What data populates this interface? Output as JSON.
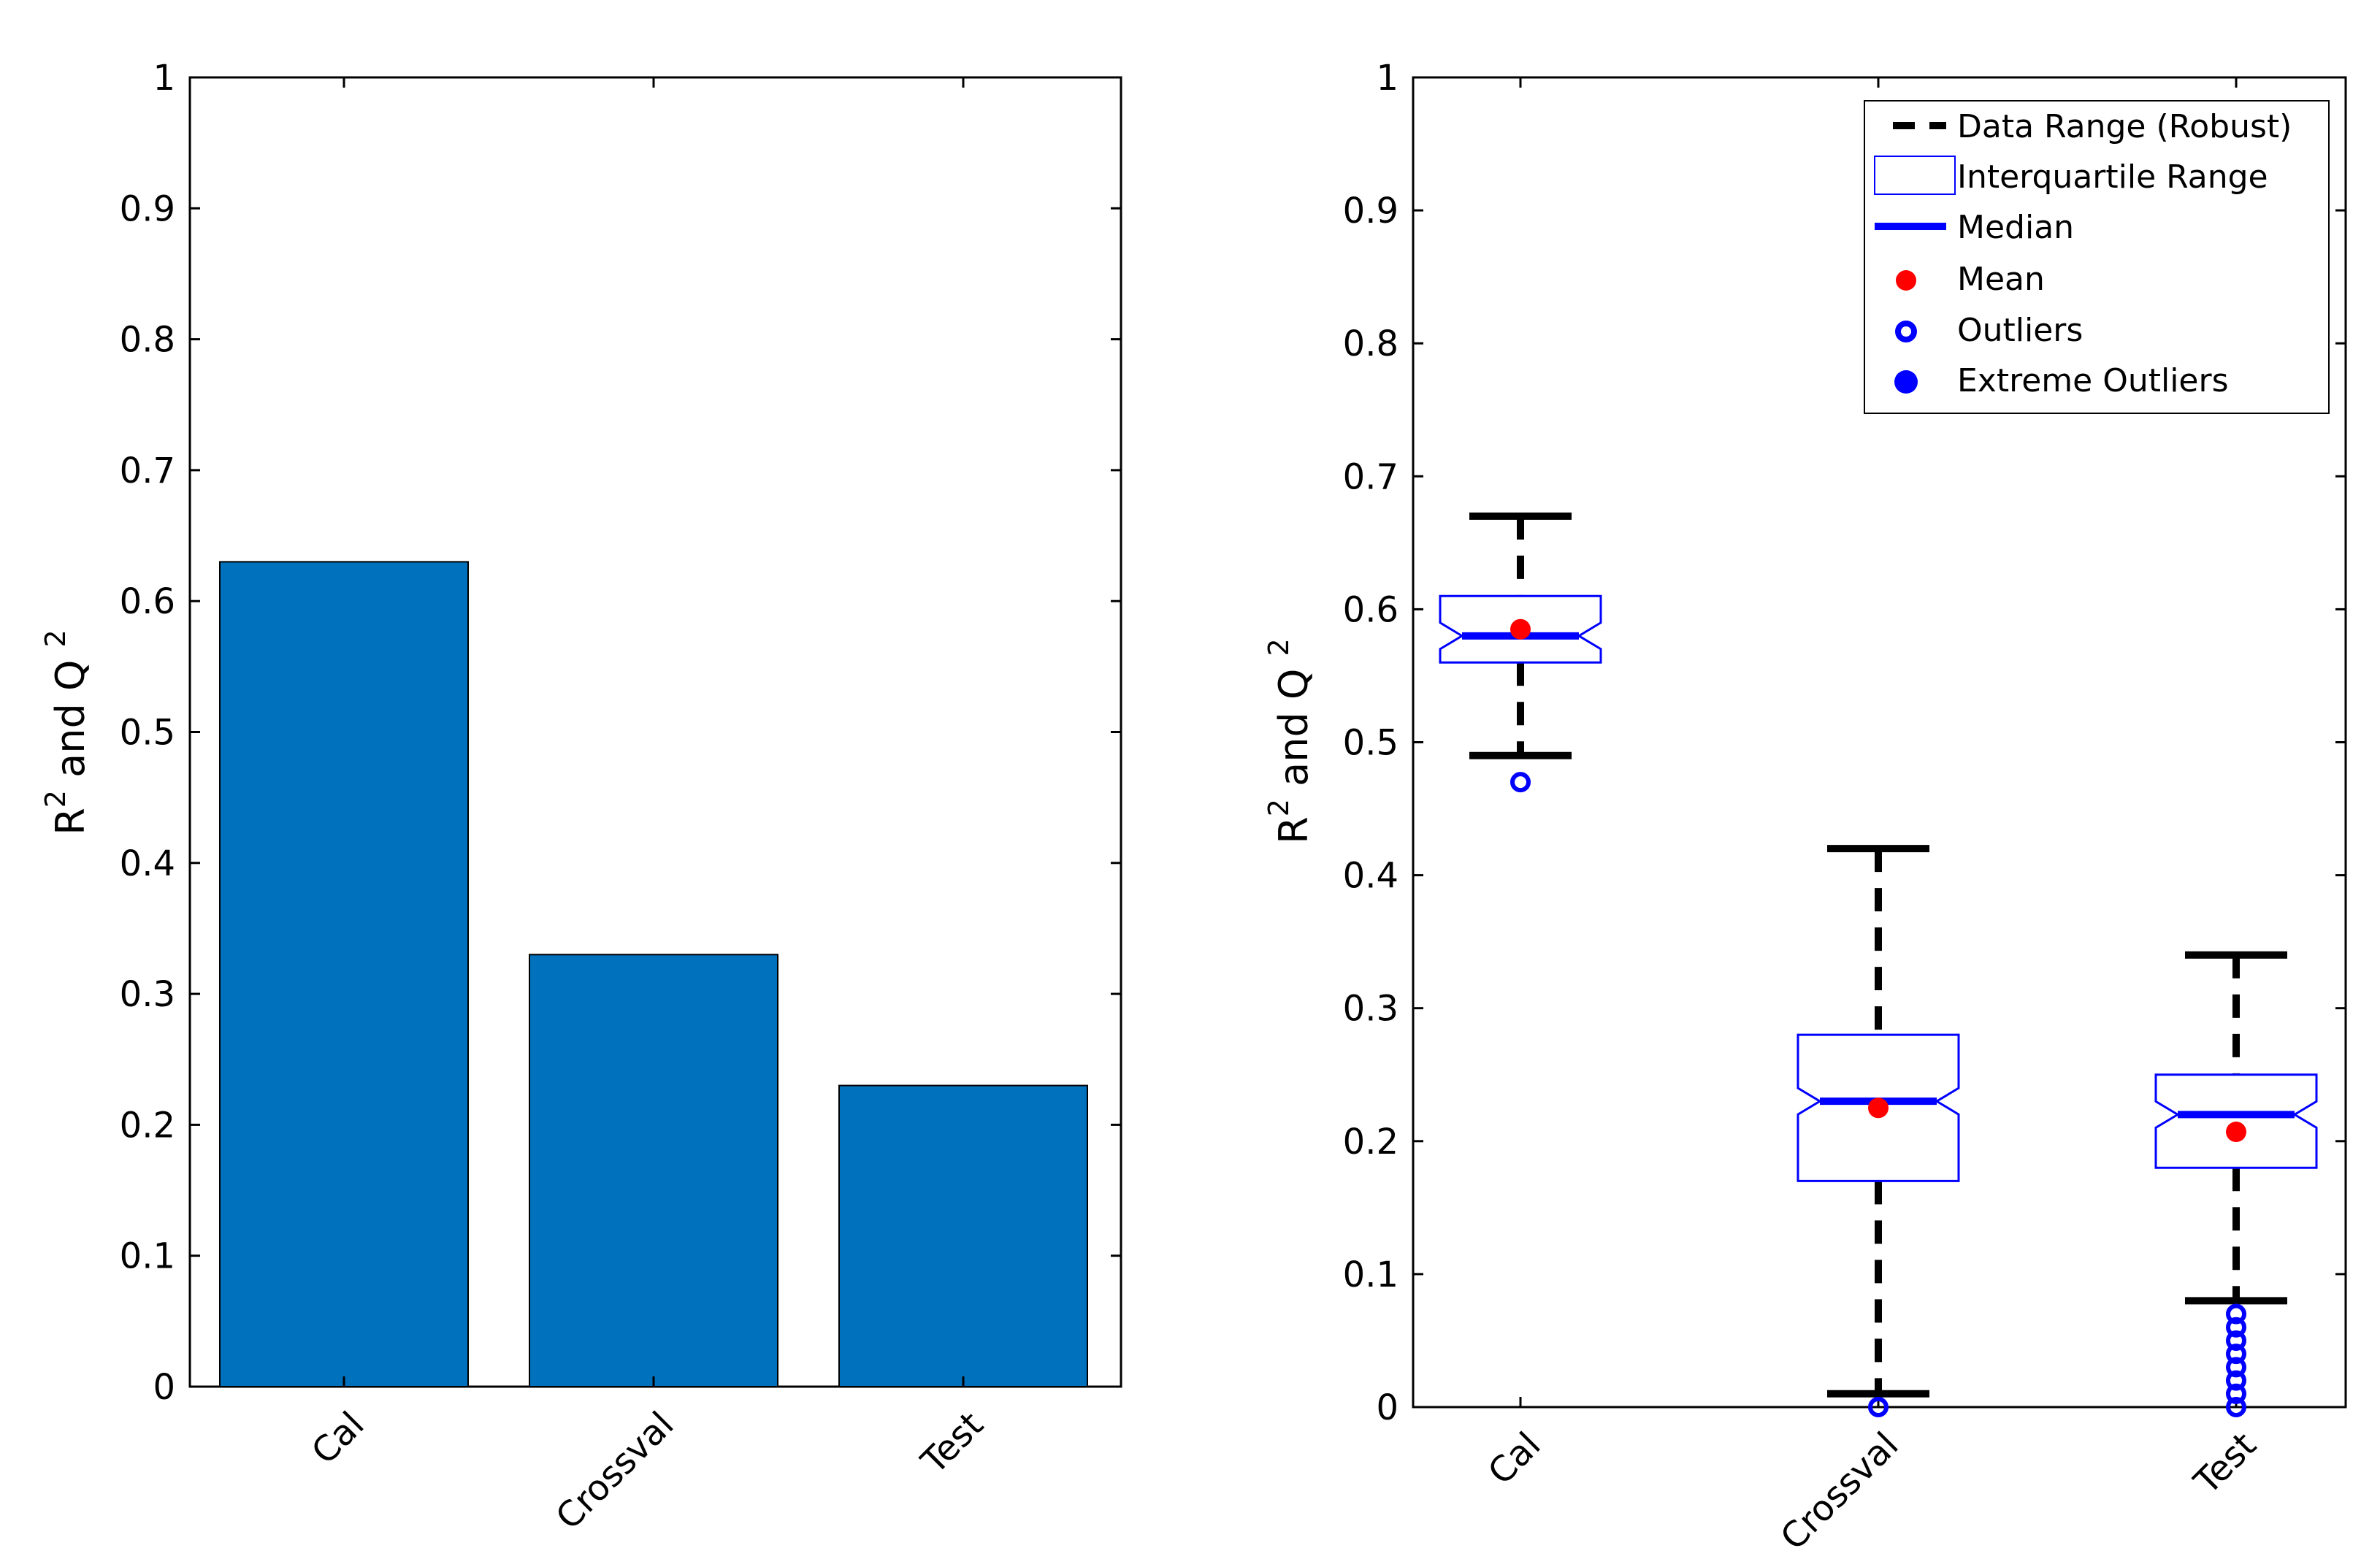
{
  "chart_data": [
    {
      "type": "bar",
      "categories": [
        "Cal",
        "Crossval",
        "Test"
      ],
      "values": [
        0.63,
        0.33,
        0.23
      ],
      "ylabel_main": "R",
      "ylabel_sup1": "2",
      "ylabel_mid": " and Q ",
      "ylabel_sup2": "2",
      "ylim": [
        0,
        1
      ],
      "yticks": [
        "0",
        "0.1",
        "0.2",
        "0.3",
        "0.4",
        "0.5",
        "0.6",
        "0.7",
        "0.8",
        "0.9",
        "1"
      ],
      "bar_color": "#0072bd"
    },
    {
      "type": "box",
      "categories": [
        "Cal",
        "Crossval",
        "Test"
      ],
      "boxes": [
        {
          "whisker_low": 0.49,
          "q1": 0.56,
          "median": 0.58,
          "q3": 0.61,
          "whisker_high": 0.67,
          "mean": 0.585,
          "outliers": [
            0.47
          ],
          "extreme_outliers": []
        },
        {
          "whisker_low": 0.01,
          "q1": 0.17,
          "median": 0.23,
          "q3": 0.28,
          "whisker_high": 0.42,
          "mean": 0.225,
          "outliers": [
            0.0
          ],
          "extreme_outliers": []
        },
        {
          "whisker_low": 0.08,
          "q1": 0.18,
          "median": 0.22,
          "q3": 0.25,
          "whisker_high": 0.34,
          "mean": 0.207,
          "outliers": [
            0.0,
            0.01,
            0.02,
            0.03,
            0.04,
            0.05,
            0.06,
            0.07
          ],
          "extreme_outliers": []
        }
      ],
      "ylabel_main": "R",
      "ylabel_sup1": "2",
      "ylabel_mid": " and Q ",
      "ylabel_sup2": "2",
      "ylim": [
        0,
        1
      ],
      "yticks": [
        "0",
        "0.1",
        "0.2",
        "0.3",
        "0.4",
        "0.5",
        "0.6",
        "0.7",
        "0.8",
        "0.9",
        "1"
      ],
      "legend": {
        "placement": "top-right",
        "entries": [
          "Data Range (Robust)",
          "Interquartile Range",
          "Median",
          "Mean",
          "Outliers",
          "Extreme Outliers"
        ]
      },
      "colors": {
        "box": "#0000ff",
        "median": "#0000ff",
        "mean": "#ff0000",
        "whisker": "#000000",
        "outlier": "#0000ff"
      }
    }
  ]
}
